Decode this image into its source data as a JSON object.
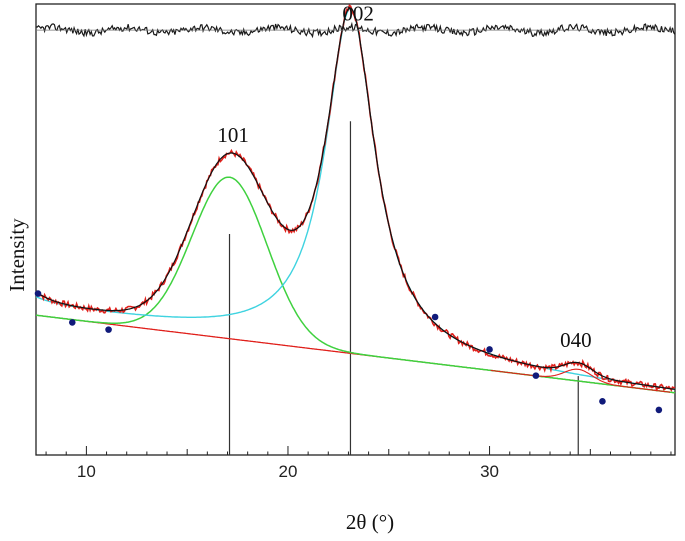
{
  "chart_data": {
    "type": "line",
    "title": "",
    "xlabel": "2θ (°)",
    "ylabel": "Intensity",
    "xlim": [
      7.5,
      39.2
    ],
    "ylim": [
      0,
      100
    ],
    "xticks": [
      10,
      20,
      30
    ],
    "grid": false,
    "legend": "none",
    "colors": {
      "observed": "#e0201b",
      "fit": "#111111",
      "peak_101": "#3fd13f",
      "peak_002": "#3fd3e0",
      "background": "#e0201b",
      "residual": "#1a1a1a",
      "points": "#101a7a",
      "sticks": "#333333"
    },
    "peak_labels": [
      {
        "text": "101",
        "x": 16.5,
        "y": 72.5
      },
      {
        "text": "002",
        "x": 22.7,
        "y": 99.5
      },
      {
        "text": "040",
        "x": 33.5,
        "y": 27
      }
    ],
    "peaks": [
      {
        "hkl": "101",
        "center": 17.1,
        "height": 35.8,
        "fwhm": 4.4
      },
      {
        "hkl": "002",
        "center": 23.1,
        "height": 75.9,
        "fwhm": 3.0
      },
      {
        "hkl": "040",
        "center": 34.4,
        "height": 2.6,
        "fwhm": 1.6
      }
    ],
    "background_line": {
      "x": [
        7.5,
        39.2
      ],
      "y": [
        31,
        13.8
      ]
    },
    "amorphous_base": {
      "y_at_8": 1.2,
      "decay": 5.0
    },
    "residual_level": 94.2,
    "sticks": [
      {
        "x": 17.1,
        "y": 49
      },
      {
        "x": 23.1,
        "y": 74
      },
      {
        "x": 34.4,
        "y": 17.5
      }
    ],
    "points": [
      {
        "x": 7.6,
        "y": 35.8
      },
      {
        "x": 9.3,
        "y": 29.4
      },
      {
        "x": 11.1,
        "y": 27.8
      },
      {
        "x": 27.3,
        "y": 30.6
      },
      {
        "x": 30.0,
        "y": 23.4
      },
      {
        "x": 32.3,
        "y": 17.6
      },
      {
        "x": 35.6,
        "y": 11.9
      },
      {
        "x": 38.4,
        "y": 10.0
      }
    ]
  }
}
